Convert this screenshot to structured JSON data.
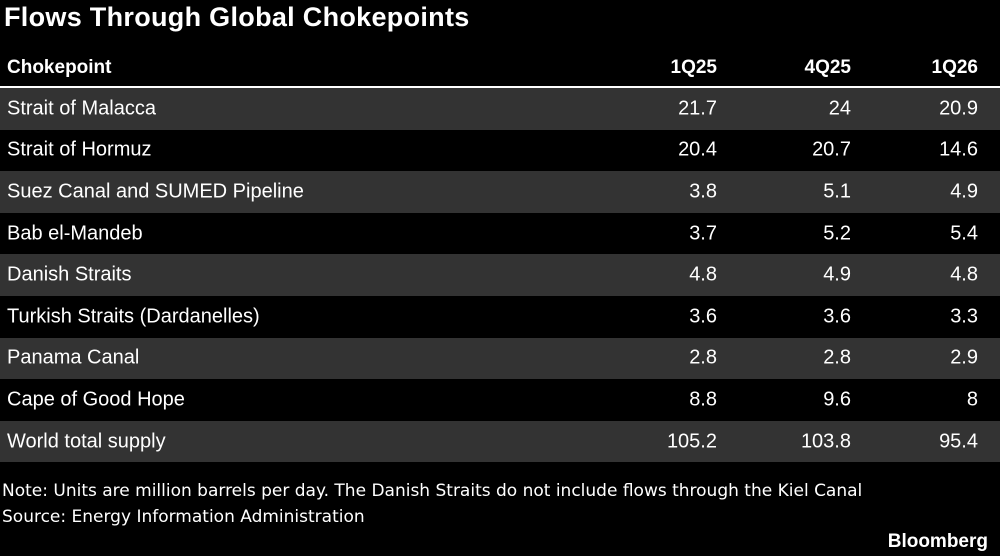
{
  "header": {
    "title": "Flows Through Global Chokepoints"
  },
  "table": {
    "columns": [
      "Chokepoint",
      "1Q25",
      "4Q25",
      "1Q26"
    ],
    "rows": [
      [
        "Strait of Malacca",
        21.7,
        24,
        20.9
      ],
      [
        "Strait of Hormuz",
        20.4,
        20.7,
        14.6
      ],
      [
        "Suez Canal and SUMED Pipeline",
        3.8,
        5.1,
        4.9
      ],
      [
        "Bab el-Mandeb",
        3.7,
        5.2,
        5.4
      ],
      [
        "Danish Straits",
        4.8,
        4.9,
        4.8
      ],
      [
        "Turkish Straits (Dardanelles)",
        3.6,
        3.6,
        3.3
      ],
      [
        "Panama Canal",
        2.8,
        2.8,
        2.9
      ],
      [
        "Cape of Good Hope",
        8.8,
        9.6,
        8
      ],
      [
        "World total supply",
        105.2,
        103.8,
        95.4
      ]
    ]
  },
  "footer": {
    "note": "Note: Units are million barrels per day. The Danish Straits do not include flows through the Kiel Canal",
    "source": "Source: Energy Information Administration",
    "brand": "Bloomberg"
  }
}
